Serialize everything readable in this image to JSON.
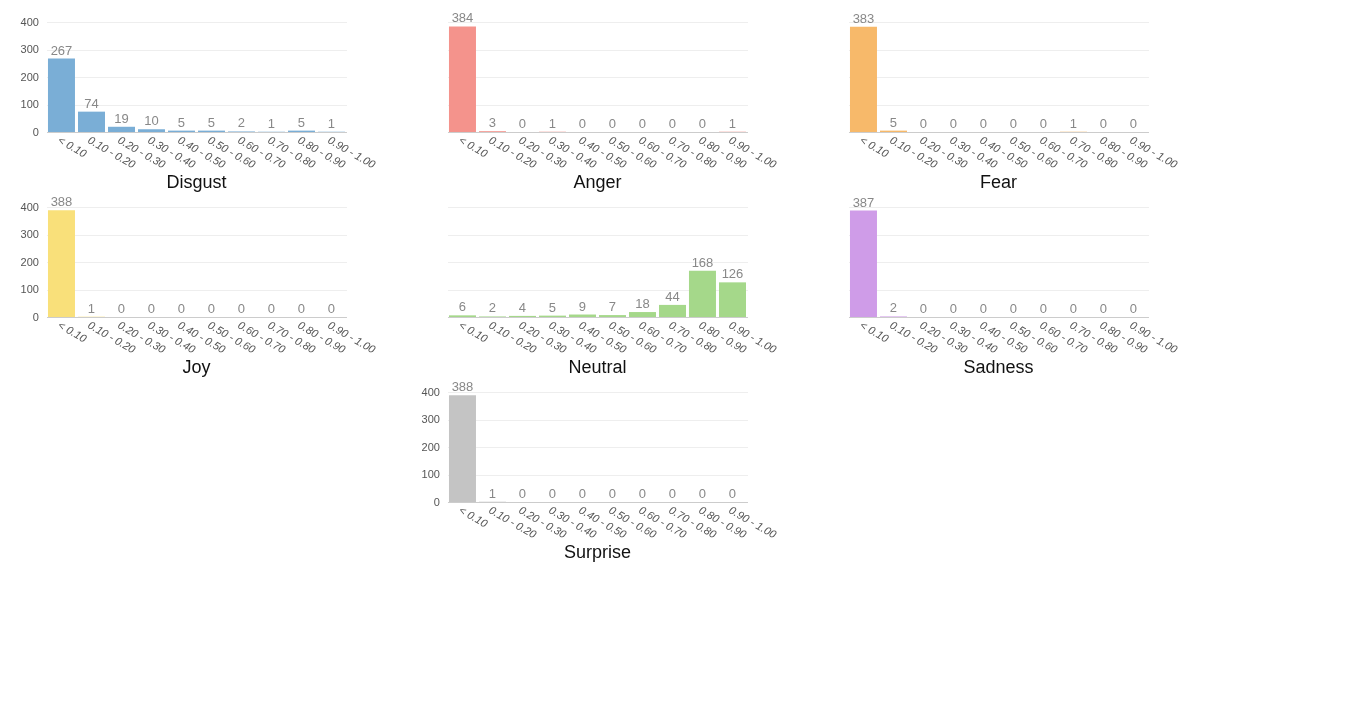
{
  "chart_data": [
    {
      "type": "bar",
      "title": "Disgust",
      "categories": [
        "< 0.10",
        "0.10 - 0.20",
        "0.20 - 0.30",
        "0.30 - 0.40",
        "0.40 - 0.50",
        "0.50 - 0.60",
        "0.60 - 0.70",
        "0.70 - 0.80",
        "0.80 - 0.90",
        "0.90 - 1.00"
      ],
      "values": [
        267,
        74,
        19,
        10,
        5,
        5,
        2,
        1,
        5,
        1
      ],
      "color": "#7aaed6",
      "ylim": [
        0,
        400
      ],
      "yticks": [
        0,
        100,
        200,
        300,
        400
      ],
      "grid": "y",
      "data_labels": true
    },
    {
      "type": "bar",
      "title": "Anger",
      "categories": [
        "< 0.10",
        "0.10 - 0.20",
        "0.20 - 0.30",
        "0.30 - 0.40",
        "0.40 - 0.50",
        "0.50 - 0.60",
        "0.60 - 0.70",
        "0.70 - 0.80",
        "0.80 - 0.90",
        "0.90 - 1.00"
      ],
      "values": [
        384,
        3,
        0,
        1,
        0,
        0,
        0,
        0,
        0,
        1
      ],
      "color": "#f4938c",
      "ylim": [
        0,
        400
      ],
      "yticks": [
        0,
        100,
        200,
        300,
        400
      ],
      "grid": "y",
      "data_labels": true,
      "tick_labels": "x"
    },
    {
      "type": "bar",
      "title": "Fear",
      "categories": [
        "< 0.10",
        "0.10 - 0.20",
        "0.20 - 0.30",
        "0.30 - 0.40",
        "0.40 - 0.50",
        "0.50 - 0.60",
        "0.60 - 0.70",
        "0.70 - 0.80",
        "0.80 - 0.90",
        "0.90 - 1.00"
      ],
      "values": [
        383,
        5,
        0,
        0,
        0,
        0,
        0,
        1,
        0,
        0
      ],
      "color": "#f7b96a",
      "ylim": [
        0,
        400
      ],
      "yticks": [
        0,
        100,
        200,
        300,
        400
      ],
      "grid": "y",
      "data_labels": true,
      "tick_labels": "x"
    },
    {
      "type": "bar",
      "title": "Joy",
      "categories": [
        "< 0.10",
        "0.10 - 0.20",
        "0.20 - 0.30",
        "0.30 - 0.40",
        "0.40 - 0.50",
        "0.50 - 0.60",
        "0.60 - 0.70",
        "0.70 - 0.80",
        "0.80 - 0.90",
        "0.90 - 1.00"
      ],
      "values": [
        388,
        1,
        0,
        0,
        0,
        0,
        0,
        0,
        0,
        0
      ],
      "color": "#f9e07a",
      "ylim": [
        0,
        400
      ],
      "yticks": [
        0,
        100,
        200,
        300,
        400
      ],
      "grid": "y",
      "data_labels": true
    },
    {
      "type": "bar",
      "title": "Neutral",
      "categories": [
        "< 0.10",
        "0.10 - 0.20",
        "0.20 - 0.30",
        "0.30 - 0.40",
        "0.40 - 0.50",
        "0.50 - 0.60",
        "0.60 - 0.70",
        "0.70 - 0.80",
        "0.80 - 0.90",
        "0.90 - 1.00"
      ],
      "values": [
        6,
        2,
        4,
        5,
        9,
        7,
        18,
        44,
        168,
        126
      ],
      "color": "#a5d88a",
      "ylim": [
        0,
        400
      ],
      "yticks": [
        0,
        100,
        200,
        300,
        400
      ],
      "grid": "y",
      "data_labels": true,
      "tick_labels": "x"
    },
    {
      "type": "bar",
      "title": "Sadness",
      "categories": [
        "< 0.10",
        "0.10 - 0.20",
        "0.20 - 0.30",
        "0.30 - 0.40",
        "0.40 - 0.50",
        "0.50 - 0.60",
        "0.60 - 0.70",
        "0.70 - 0.80",
        "0.80 - 0.90",
        "0.90 - 1.00"
      ],
      "values": [
        387,
        2,
        0,
        0,
        0,
        0,
        0,
        0,
        0,
        0
      ],
      "color": "#cf9ce8",
      "ylim": [
        0,
        400
      ],
      "yticks": [
        0,
        100,
        200,
        300,
        400
      ],
      "grid": "y",
      "data_labels": true,
      "tick_labels": "x"
    },
    {
      "type": "bar",
      "title": "Surprise",
      "categories": [
        "< 0.10",
        "0.10 - 0.20",
        "0.20 - 0.30",
        "0.30 - 0.40",
        "0.40 - 0.50",
        "0.50 - 0.60",
        "0.60 - 0.70",
        "0.70 - 0.80",
        "0.80 - 0.90",
        "0.90 - 1.00"
      ],
      "values": [
        388,
        1,
        0,
        0,
        0,
        0,
        0,
        0,
        0,
        0
      ],
      "color": "#c4c4c4",
      "ylim": [
        0,
        400
      ],
      "yticks": [
        0,
        100,
        200,
        300,
        400
      ],
      "grid": "y",
      "data_labels": true
    }
  ]
}
